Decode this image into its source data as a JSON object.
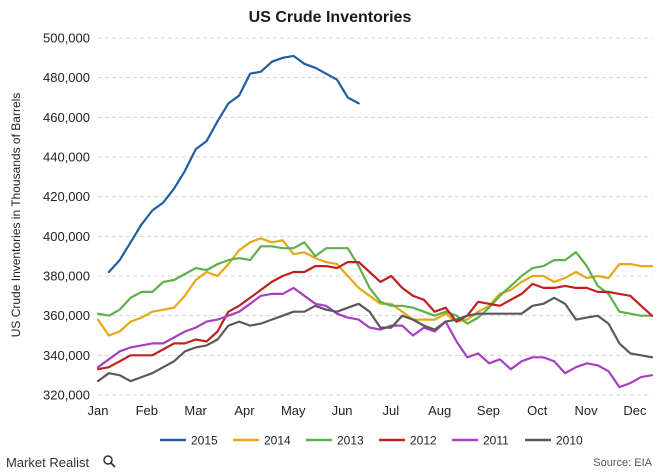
{
  "chart_data": {
    "type": "line",
    "title": "US Crude Inventories",
    "ylabel": "US Crude Inventories in Thousands of Barrels",
    "xlabel": "",
    "ylim": [
      320000,
      500000
    ],
    "yticks": [
      "500,000",
      "480,000",
      "460,000",
      "440,000",
      "420,000",
      "400,000",
      "380,000",
      "360,000",
      "340,000",
      "320,000"
    ],
    "ytick_values": [
      500000,
      480000,
      460000,
      440000,
      420000,
      400000,
      380000,
      360000,
      340000,
      320000
    ],
    "x_month_labels": [
      "Jan",
      "Feb",
      "Mar",
      "Apr",
      "May",
      "Jun",
      "Jul",
      "Aug",
      "Sep",
      "Oct",
      "Nov",
      "Dec"
    ],
    "x_unit": "week of year",
    "xlim": [
      1,
      52
    ],
    "grid": true,
    "legend_position": "bottom",
    "series": [
      {
        "name": "2015",
        "color": "#1f5fa0",
        "x": [
          2,
          3,
          4,
          5,
          6,
          7,
          8,
          9,
          10,
          11,
          12,
          13,
          14,
          15,
          16,
          17,
          18,
          19,
          20,
          21,
          22,
          23,
          24,
          25
        ],
        "values": [
          382000,
          388000,
          397000,
          406000,
          413000,
          417000,
          424000,
          433000,
          444000,
          448000,
          458000,
          467000,
          471000,
          482000,
          483000,
          488000,
          490000,
          491000,
          487000,
          485000,
          482000,
          479000,
          470000,
          467000
        ]
      },
      {
        "name": "2014",
        "color": "#e6a817",
        "x": [
          1,
          2,
          3,
          4,
          5,
          6,
          7,
          8,
          9,
          10,
          11,
          12,
          13,
          14,
          15,
          16,
          17,
          18,
          19,
          20,
          21,
          22,
          23,
          24,
          25,
          26,
          27,
          28,
          29,
          30,
          31,
          32,
          33,
          34,
          35,
          36,
          37,
          38,
          39,
          40,
          41,
          42,
          43,
          44,
          45,
          46,
          47,
          48,
          49,
          50,
          51,
          52
        ],
        "values": [
          358000,
          350000,
          352000,
          357000,
          359000,
          362000,
          363000,
          364000,
          370000,
          378000,
          382000,
          380000,
          386000,
          393000,
          397000,
          399000,
          397000,
          398000,
          391000,
          392000,
          389000,
          387000,
          386000,
          380000,
          374000,
          370000,
          366000,
          366000,
          362000,
          358000,
          358000,
          358000,
          361000,
          357000,
          358000,
          362000,
          365000,
          371000,
          373000,
          377000,
          380000,
          380000,
          377000,
          379000,
          382000,
          379000,
          380000,
          379000,
          386000,
          386000,
          385000,
          385000
        ]
      },
      {
        "name": "2013",
        "color": "#5db04a",
        "x": [
          1,
          2,
          3,
          4,
          5,
          6,
          7,
          8,
          9,
          10,
          11,
          12,
          13,
          14,
          15,
          16,
          17,
          18,
          19,
          20,
          21,
          22,
          23,
          24,
          25,
          26,
          27,
          28,
          29,
          30,
          31,
          32,
          33,
          34,
          35,
          36,
          37,
          38,
          39,
          40,
          41,
          42,
          43,
          44,
          45,
          46,
          47,
          48,
          49,
          50,
          51,
          52
        ],
        "values": [
          361000,
          360000,
          363000,
          369000,
          372000,
          372000,
          377000,
          378000,
          381000,
          384000,
          383000,
          386000,
          388000,
          389000,
          388000,
          395000,
          395000,
          394000,
          394000,
          397000,
          390000,
          394000,
          394000,
          394000,
          385000,
          374000,
          367000,
          365000,
          365000,
          364000,
          362000,
          360000,
          362000,
          360000,
          356000,
          359000,
          364000,
          370000,
          375000,
          380000,
          384000,
          385000,
          388000,
          388000,
          392000,
          385000,
          375000,
          371000,
          362000,
          361000,
          360000,
          360000
        ]
      },
      {
        "name": "2012",
        "color": "#c0201f",
        "x": [
          1,
          2,
          3,
          4,
          5,
          6,
          7,
          8,
          9,
          10,
          11,
          12,
          13,
          14,
          15,
          16,
          17,
          18,
          19,
          20,
          21,
          22,
          23,
          24,
          25,
          26,
          27,
          28,
          29,
          30,
          31,
          32,
          33,
          34,
          35,
          36,
          37,
          38,
          39,
          40,
          41,
          42,
          43,
          44,
          45,
          46,
          47,
          48,
          49,
          50,
          51,
          52
        ],
        "values": [
          333000,
          334000,
          337000,
          340000,
          340000,
          340000,
          343000,
          346000,
          346000,
          348000,
          347000,
          352000,
          362000,
          365000,
          369000,
          373000,
          377000,
          380000,
          382000,
          382000,
          385000,
          385000,
          384000,
          387000,
          387000,
          382000,
          377000,
          380000,
          374000,
          370000,
          368000,
          362000,
          364000,
          357000,
          360000,
          367000,
          366000,
          365000,
          368000,
          371000,
          376000,
          374000,
          374000,
          375000,
          374000,
          374000,
          372000,
          372000,
          371000,
          370000,
          365000,
          360000
        ]
      },
      {
        "name": "2011",
        "color": "#a83ec2",
        "x": [
          1,
          2,
          3,
          4,
          5,
          6,
          7,
          8,
          9,
          10,
          11,
          12,
          13,
          14,
          15,
          16,
          17,
          18,
          19,
          20,
          21,
          22,
          23,
          24,
          25,
          26,
          27,
          28,
          29,
          30,
          31,
          32,
          33,
          34,
          35,
          36,
          37,
          38,
          39,
          40,
          41,
          42,
          43,
          44,
          45,
          46,
          47,
          48,
          49,
          50,
          51,
          52
        ],
        "values": [
          334000,
          338000,
          342000,
          344000,
          345000,
          346000,
          346000,
          349000,
          352000,
          354000,
          357000,
          358000,
          360000,
          362000,
          366000,
          370000,
          371000,
          371000,
          374000,
          370000,
          366000,
          365000,
          361000,
          359000,
          358000,
          354000,
          353000,
          355000,
          355000,
          350000,
          354000,
          352000,
          357000,
          347000,
          339000,
          341000,
          336000,
          338000,
          333000,
          337000,
          339000,
          339000,
          337000,
          331000,
          334000,
          336000,
          335000,
          332000,
          324000,
          326000,
          329000,
          330000
        ]
      },
      {
        "name": "2010",
        "color": "#595959",
        "x": [
          1,
          2,
          3,
          4,
          5,
          6,
          7,
          8,
          9,
          10,
          11,
          12,
          13,
          14,
          15,
          16,
          17,
          18,
          19,
          20,
          21,
          22,
          23,
          24,
          25,
          26,
          27,
          28,
          29,
          30,
          31,
          32,
          33,
          34,
          35,
          36,
          37,
          38,
          39,
          40,
          41,
          42,
          43,
          44,
          45,
          46,
          47,
          48,
          49,
          50,
          51,
          52
        ],
        "values": [
          327000,
          331000,
          330000,
          327000,
          329000,
          331000,
          334000,
          337000,
          342000,
          344000,
          345000,
          348000,
          355000,
          357000,
          355000,
          356000,
          358000,
          360000,
          362000,
          362000,
          365000,
          363000,
          362000,
          364000,
          366000,
          362000,
          354000,
          354000,
          360000,
          358000,
          355000,
          353000,
          357000,
          358000,
          360000,
          361000,
          361000,
          361000,
          361000,
          361000,
          365000,
          366000,
          369000,
          366000,
          358000,
          359000,
          360000,
          356000,
          346000,
          341000,
          340000,
          339000
        ]
      }
    ]
  },
  "footer": {
    "brand": "Market Realist",
    "source": "Source: EIA"
  }
}
